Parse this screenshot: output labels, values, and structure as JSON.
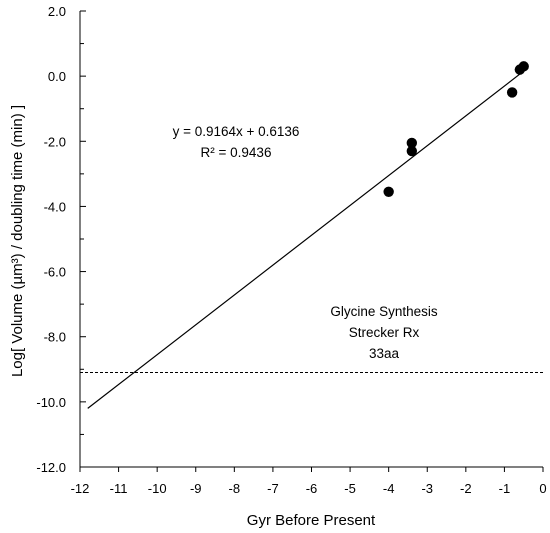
{
  "chart_data": {
    "type": "scatter",
    "xlabel": "Gyr Before Present",
    "ylabel": "Log[ Volume (µm³) / doubling time (min) ]",
    "xlim": [
      -12,
      0
    ],
    "ylim": [
      -12,
      2
    ],
    "x_ticks": [
      -12,
      -11,
      -10,
      -9,
      -8,
      -7,
      -6,
      -5,
      -4,
      -3,
      -2,
      -1,
      0
    ],
    "x_tick_labels": [
      "-12",
      "-11",
      "-10",
      "-9",
      "-8",
      "-7",
      "-6",
      "-5",
      "-4",
      "-3",
      "-2",
      "-1",
      "0"
    ],
    "y_ticks": [
      2,
      0,
      -2,
      -4,
      -6,
      -8,
      -10,
      -12
    ],
    "y_tick_labels": [
      "2.0",
      "0.0",
      "-2.0",
      "-4.0",
      "-6.0",
      "-8.0",
      "-10.0",
      "-12.0"
    ],
    "grid": false,
    "series": [
      {
        "points": [
          {
            "x": -0.5,
            "y": 0.3
          },
          {
            "x": -0.6,
            "y": 0.2
          },
          {
            "x": -0.8,
            "y": -0.5
          },
          {
            "x": -3.4,
            "y": -2.05
          },
          {
            "x": -3.4,
            "y": -2.3
          },
          {
            "x": -4.0,
            "y": -3.55
          }
        ],
        "color": "#000000"
      }
    ],
    "trendline": {
      "slope": 0.9164,
      "intercept": 0.6136,
      "x_range": [
        -11.8,
        -0.5
      ],
      "equation_label": "y = 0.9164x + 0.6136",
      "r2_label": "R² = 0.9436",
      "color": "#000000"
    },
    "reference_line": {
      "y": -9.1,
      "style": "dashed",
      "labels": [
        "Glycine Synthesis",
        "Strecker Rx",
        "33aa"
      ]
    }
  }
}
